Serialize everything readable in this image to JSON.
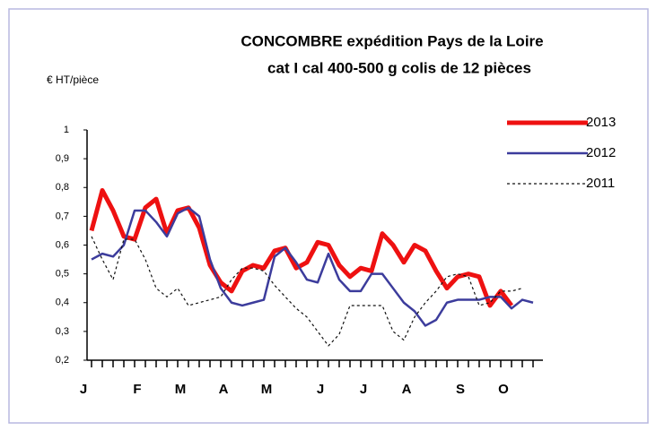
{
  "chart_data": {
    "type": "line",
    "title": "CONCOMBRE  expédition Pays de la Loire",
    "subtitle": "cat I  cal 400-500 g  colis de 12 pièces",
    "y_label": "€ HT/pièce",
    "categories": [
      "J",
      null,
      null,
      null,
      null,
      "F",
      null,
      null,
      null,
      "M",
      null,
      null,
      null,
      "A",
      null,
      null,
      null,
      "M",
      null,
      null,
      null,
      null,
      "J",
      null,
      null,
      null,
      "J",
      null,
      null,
      null,
      "A",
      null,
      null,
      null,
      null,
      "S",
      null,
      null,
      null,
      "O",
      null,
      null
    ],
    "ylim": [
      0.2,
      1
    ],
    "yticks": [
      {
        "value": 0.2,
        "label": "0,2"
      },
      {
        "value": 0.3,
        "label": "0,3"
      },
      {
        "value": 0.4,
        "label": "0,4"
      },
      {
        "value": 0.5,
        "label": "0,5"
      },
      {
        "value": 0.6,
        "label": "0,6"
      },
      {
        "value": 0.7,
        "label": "0,7"
      },
      {
        "value": 0.8,
        "label": "0,8"
      },
      {
        "value": 0.9,
        "label": "0,9"
      },
      1
    ],
    "legend": "upper right",
    "series": [
      {
        "name": "2013",
        "color": "#ee1111",
        "width": 5,
        "dash": "solid",
        "values": [
          0.65,
          0.79,
          0.72,
          0.63,
          0.62,
          0.73,
          0.76,
          0.64,
          0.72,
          0.73,
          0.66,
          0.53,
          0.47,
          0.44,
          0.51,
          0.53,
          0.52,
          0.58,
          0.59,
          0.52,
          0.54,
          0.61,
          0.6,
          0.53,
          0.49,
          0.52,
          0.51,
          0.64,
          0.6,
          0.54,
          0.6,
          0.58,
          0.51,
          0.45,
          0.49,
          0.5,
          0.49,
          0.39,
          0.44,
          0.39,
          null,
          null
        ]
      },
      {
        "name": "2012",
        "color": "#3c3c9c",
        "width": 2.5,
        "dash": "solid",
        "values": [
          0.55,
          0.57,
          0.56,
          0.6,
          0.72,
          0.72,
          0.68,
          0.63,
          0.71,
          0.73,
          0.7,
          0.55,
          0.45,
          0.4,
          0.39,
          0.4,
          0.41,
          0.56,
          0.59,
          0.54,
          0.48,
          0.47,
          0.57,
          0.48,
          0.44,
          0.44,
          0.5,
          0.5,
          0.45,
          0.4,
          0.37,
          0.32,
          0.34,
          0.4,
          0.41,
          0.41,
          0.41,
          0.42,
          0.42,
          0.38,
          0.41,
          0.4
        ]
      },
      {
        "name": "2011",
        "color": "#111111",
        "width": 1.2,
        "dash": "dotted",
        "values": [
          0.63,
          0.55,
          0.48,
          0.62,
          0.62,
          0.55,
          0.45,
          0.42,
          0.45,
          0.39,
          0.4,
          0.41,
          0.42,
          0.48,
          0.52,
          0.52,
          0.51,
          0.46,
          0.42,
          0.38,
          0.35,
          0.3,
          0.25,
          0.29,
          0.39,
          0.39,
          0.39,
          0.39,
          0.3,
          0.27,
          0.35,
          0.4,
          0.44,
          0.49,
          0.5,
          0.49,
          0.39,
          0.4,
          0.44,
          0.44,
          0.45,
          null
        ]
      }
    ]
  }
}
